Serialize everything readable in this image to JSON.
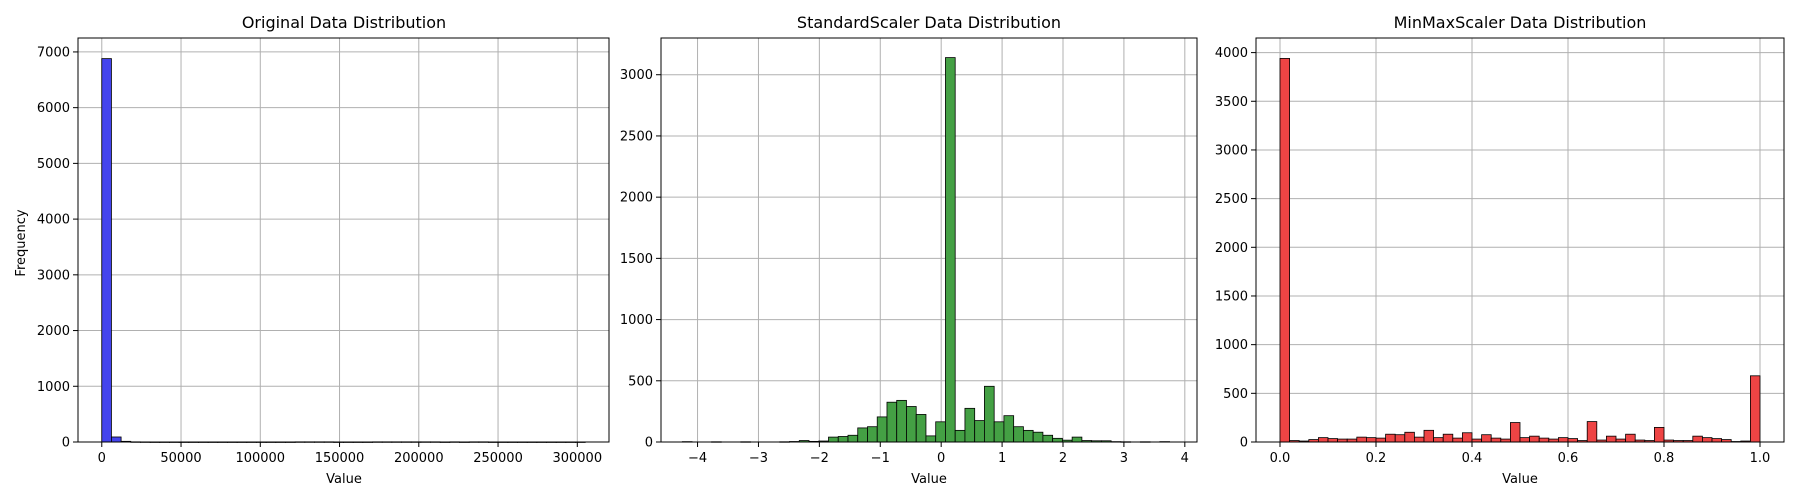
{
  "chart_data": [
    {
      "type": "bar",
      "title": "Original Data Distribution",
      "xlabel": "Value",
      "ylabel": "Frequency",
      "color": "#4444ee",
      "xlim": [
        -15000,
        320000
      ],
      "ylim": [
        0,
        7250
      ],
      "xticks": [
        0,
        50000,
        100000,
        150000,
        200000,
        250000,
        300000
      ],
      "xtick_labels": [
        "0",
        "50000",
        "100000",
        "150000",
        "200000",
        "250000",
        "300000"
      ],
      "yticks": [
        0,
        1000,
        2000,
        3000,
        4000,
        5000,
        6000,
        7000
      ],
      "ytick_labels": [
        "0",
        "1000",
        "2000",
        "3000",
        "4000",
        "5000",
        "6000",
        "7000"
      ],
      "grid": true,
      "bin_start": 0,
      "bin_width": 6100,
      "counts": [
        6880,
        90,
        12,
        3,
        2,
        1,
        1,
        1,
        1,
        1,
        1,
        1,
        1,
        1,
        1,
        1,
        1,
        1,
        1,
        1,
        3,
        3,
        3,
        3,
        1,
        1,
        1,
        1,
        3,
        3,
        3,
        3,
        3,
        3,
        3,
        1,
        3,
        1,
        3,
        3,
        1,
        1,
        1,
        1,
        1,
        1,
        1,
        1,
        1,
        1
      ]
    },
    {
      "type": "bar",
      "title": "StandardScaler Data Distribution",
      "xlabel": "Value",
      "ylabel": "",
      "color": "#44a044",
      "xlim": [
        -4.6,
        4.2
      ],
      "ylim": [
        0,
        3300
      ],
      "xticks": [
        -4,
        -3,
        -2,
        -1,
        0,
        1,
        2,
        3,
        4
      ],
      "xtick_labels": [
        "−4",
        "−3",
        "−2",
        "−1",
        "0",
        "1",
        "2",
        "3",
        "4"
      ],
      "yticks": [
        0,
        500,
        1000,
        1500,
        2000,
        2500,
        3000
      ],
      "ytick_labels": [
        "0",
        "500",
        "1000",
        "1500",
        "2000",
        "2500",
        "3000"
      ],
      "grid": true,
      "bin_start": -4.25,
      "bin_width": 0.16,
      "counts": [
        3,
        0,
        0,
        2,
        0,
        0,
        2,
        0,
        0,
        0,
        2,
        4,
        12,
        5,
        8,
        40,
        45,
        55,
        115,
        125,
        205,
        325,
        340,
        290,
        225,
        50,
        165,
        3140,
        95,
        275,
        175,
        455,
        165,
        215,
        125,
        95,
        80,
        55,
        30,
        15,
        40,
        12,
        10,
        10,
        3,
        2,
        0,
        2,
        0,
        3
      ]
    },
    {
      "type": "bar",
      "title": "MinMaxScaler Data Distribution",
      "xlabel": "Value",
      "ylabel": "",
      "color": "#ee4444",
      "xlim": [
        -0.05,
        1.05
      ],
      "ylim": [
        0,
        4150
      ],
      "xticks": [
        0.0,
        0.2,
        0.4,
        0.6,
        0.8,
        1.0
      ],
      "xtick_labels": [
        "0.0",
        "0.2",
        "0.4",
        "0.6",
        "0.8",
        "1.0"
      ],
      "yticks": [
        0,
        500,
        1000,
        1500,
        2000,
        2500,
        3000,
        3500,
        4000
      ],
      "ytick_labels": [
        "0",
        "500",
        "1000",
        "1500",
        "2000",
        "2500",
        "3000",
        "3500",
        "4000"
      ],
      "grid": true,
      "bin_start": 0,
      "bin_width": 0.02,
      "counts": [
        3940,
        15,
        10,
        25,
        45,
        35,
        30,
        30,
        50,
        45,
        40,
        80,
        75,
        100,
        50,
        120,
        45,
        80,
        40,
        95,
        30,
        75,
        40,
        30,
        200,
        45,
        60,
        40,
        30,
        45,
        35,
        15,
        210,
        20,
        60,
        30,
        80,
        20,
        15,
        150,
        20,
        15,
        15,
        60,
        45,
        35,
        25,
        5,
        10,
        680
      ]
    }
  ]
}
